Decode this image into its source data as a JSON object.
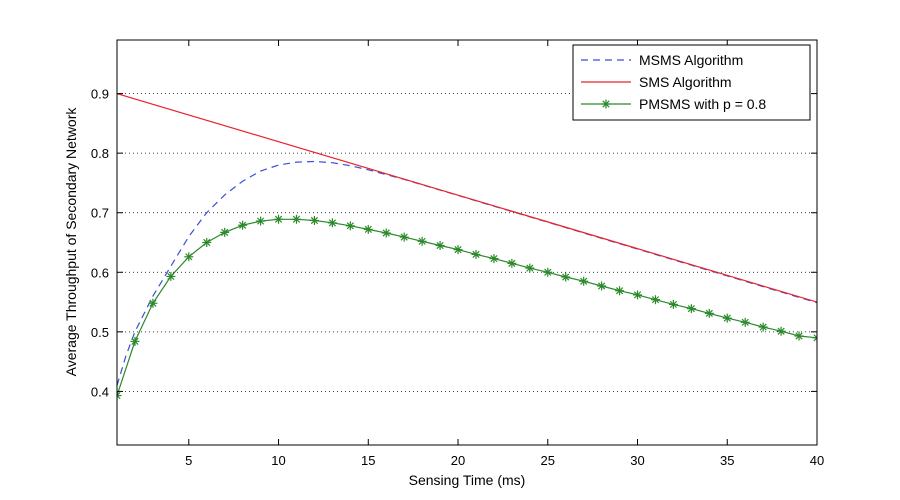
{
  "chart_data": {
    "type": "line",
    "title": "",
    "xlabel": "Sensing Time (ms)",
    "ylabel": "Average Throughput of Secondary Network",
    "xlim": [
      1,
      40
    ],
    "ylim": [
      0.31,
      0.99
    ],
    "xticks": [
      5,
      10,
      15,
      20,
      25,
      30,
      35,
      40
    ],
    "yticks": [
      0.4,
      0.5,
      0.6,
      0.7,
      0.8,
      0.9
    ],
    "grid": "y-dotted",
    "legend_position": "top-right",
    "series": [
      {
        "name": "MSMS Algorithm",
        "style": "dashed",
        "color": "#3b4fd8",
        "x": [
          1,
          1.5,
          2,
          3,
          4,
          5,
          6,
          7,
          8,
          9,
          10,
          11,
          12,
          13,
          14,
          15,
          16,
          17,
          18,
          19,
          20,
          22,
          25,
          30,
          35,
          40
        ],
        "y": [
          0.41,
          0.46,
          0.5,
          0.56,
          0.61,
          0.66,
          0.7,
          0.73,
          0.753,
          0.77,
          0.78,
          0.785,
          0.786,
          0.784,
          0.779,
          0.772,
          0.764,
          0.756,
          0.747,
          0.738,
          0.729,
          0.711,
          0.684,
          0.639,
          0.594,
          0.549
        ]
      },
      {
        "name": "SMS Algorithm",
        "style": "solid",
        "color": "#e8242b",
        "x": [
          1,
          40
        ],
        "y": [
          0.9,
          0.55
        ]
      },
      {
        "name": "PMSMS with p = 0.8",
        "style": "solid-star",
        "color": "#2a8a2a",
        "x": [
          1,
          2,
          3,
          4,
          5,
          6,
          7,
          8,
          9,
          10,
          11,
          12,
          13,
          14,
          15,
          16,
          17,
          18,
          19,
          20,
          21,
          22,
          23,
          24,
          25,
          26,
          27,
          28,
          29,
          30,
          31,
          32,
          33,
          34,
          35,
          36,
          37,
          38,
          39,
          40
        ],
        "y": [
          0.393,
          0.484,
          0.548,
          0.593,
          0.626,
          0.65,
          0.667,
          0.679,
          0.686,
          0.689,
          0.689,
          0.687,
          0.683,
          0.678,
          0.672,
          0.666,
          0.659,
          0.652,
          0.645,
          0.638,
          0.63,
          0.623,
          0.615,
          0.607,
          0.6,
          0.592,
          0.585,
          0.577,
          0.569,
          0.562,
          0.554,
          0.546,
          0.539,
          0.531,
          0.523,
          0.516,
          0.508,
          0.501,
          0.493,
          0.49
        ]
      }
    ]
  }
}
